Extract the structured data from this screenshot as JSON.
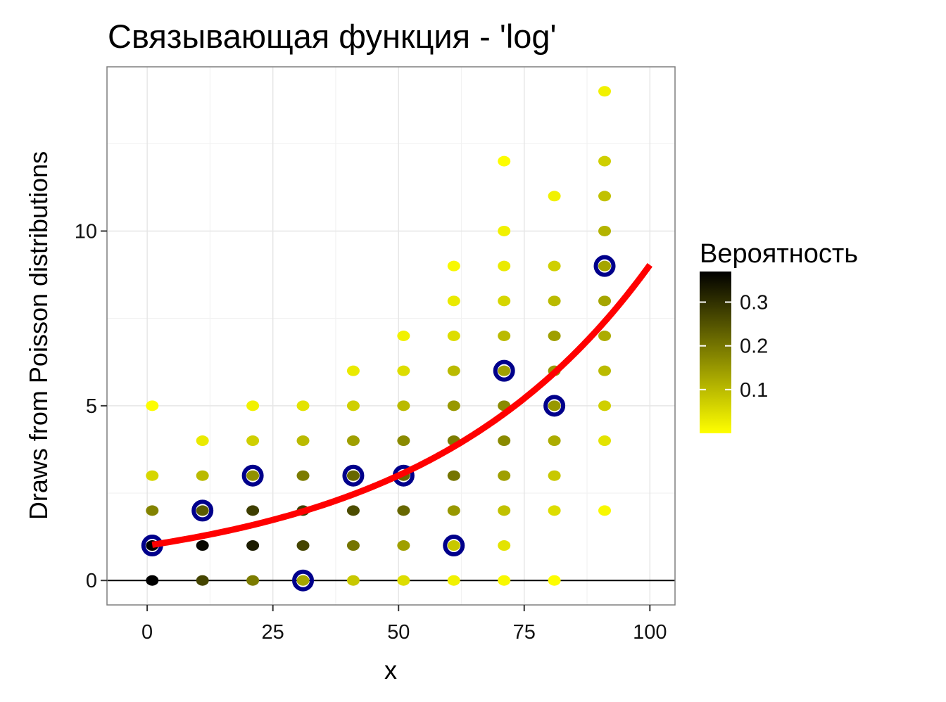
{
  "chart_data": {
    "type": "scatter",
    "title": "Связывающая функция - 'log'",
    "xlabel": "x",
    "ylabel": "Draws from Poisson distributions",
    "xlim": [
      -8,
      105
    ],
    "ylim": [
      -0.7,
      14.7
    ],
    "x_ticks": [
      0,
      25,
      50,
      75,
      100
    ],
    "y_ticks": [
      0,
      5,
      10
    ],
    "x_tick_labels": [
      "0",
      "25",
      "50",
      "75",
      "100"
    ],
    "y_tick_labels": [
      "0",
      "5",
      "10"
    ],
    "hline_y": 0,
    "grid": true,
    "legend": {
      "title": "Вероятность",
      "position": "right",
      "scale_min": 0.0,
      "scale_max": 0.37,
      "ticks": [
        0.3,
        0.2,
        0.1
      ],
      "tick_labels": [
        "0.3",
        "0.2",
        "0.1"
      ],
      "color_low": "#ffff00",
      "color_high": "#000000"
    },
    "series": [
      {
        "type": "scatter",
        "points": [
          {
            "x": 1,
            "y": 0,
            "p": 0.37
          },
          {
            "x": 1,
            "y": 1,
            "p": 0.37
          },
          {
            "x": 1,
            "y": 2,
            "p": 0.18
          },
          {
            "x": 1,
            "y": 3,
            "p": 0.06
          },
          {
            "x": 1,
            "y": 5,
            "p": 0.003
          },
          {
            "x": 11,
            "y": 0,
            "p": 0.27
          },
          {
            "x": 11,
            "y": 1,
            "p": 0.36
          },
          {
            "x": 11,
            "y": 2,
            "p": 0.24
          },
          {
            "x": 11,
            "y": 3,
            "p": 0.1
          },
          {
            "x": 11,
            "y": 4,
            "p": 0.03
          },
          {
            "x": 21,
            "y": 0,
            "p": 0.19
          },
          {
            "x": 21,
            "y": 1,
            "p": 0.33
          },
          {
            "x": 21,
            "y": 2,
            "p": 0.28
          },
          {
            "x": 21,
            "y": 3,
            "p": 0.16
          },
          {
            "x": 21,
            "y": 4,
            "p": 0.07
          },
          {
            "x": 21,
            "y": 5,
            "p": 0.02
          },
          {
            "x": 31,
            "y": 0,
            "p": 0.13
          },
          {
            "x": 31,
            "y": 1,
            "p": 0.27
          },
          {
            "x": 31,
            "y": 2,
            "p": 0.28
          },
          {
            "x": 31,
            "y": 3,
            "p": 0.19
          },
          {
            "x": 31,
            "y": 4,
            "p": 0.1
          },
          {
            "x": 31,
            "y": 5,
            "p": 0.04
          },
          {
            "x": 41,
            "y": 0,
            "p": 0.08
          },
          {
            "x": 41,
            "y": 1,
            "p": 0.2
          },
          {
            "x": 41,
            "y": 2,
            "p": 0.26
          },
          {
            "x": 41,
            "y": 3,
            "p": 0.22
          },
          {
            "x": 41,
            "y": 4,
            "p": 0.14
          },
          {
            "x": 41,
            "y": 5,
            "p": 0.07
          },
          {
            "x": 41,
            "y": 6,
            "p": 0.03
          },
          {
            "x": 51,
            "y": 0,
            "p": 0.05
          },
          {
            "x": 51,
            "y": 1,
            "p": 0.14
          },
          {
            "x": 51,
            "y": 2,
            "p": 0.22
          },
          {
            "x": 51,
            "y": 3,
            "p": 0.22
          },
          {
            "x": 51,
            "y": 4,
            "p": 0.17
          },
          {
            "x": 51,
            "y": 5,
            "p": 0.1
          },
          {
            "x": 51,
            "y": 6,
            "p": 0.05
          },
          {
            "x": 51,
            "y": 7,
            "p": 0.02
          },
          {
            "x": 61,
            "y": 0,
            "p": 0.02
          },
          {
            "x": 61,
            "y": 1,
            "p": 0.08
          },
          {
            "x": 61,
            "y": 2,
            "p": 0.15
          },
          {
            "x": 61,
            "y": 3,
            "p": 0.2
          },
          {
            "x": 61,
            "y": 4,
            "p": 0.19
          },
          {
            "x": 61,
            "y": 5,
            "p": 0.15
          },
          {
            "x": 61,
            "y": 6,
            "p": 0.1
          },
          {
            "x": 61,
            "y": 7,
            "p": 0.05
          },
          {
            "x": 61,
            "y": 8,
            "p": 0.03
          },
          {
            "x": 61,
            "y": 9,
            "p": 0.01
          },
          {
            "x": 71,
            "y": 0,
            "p": 0.01
          },
          {
            "x": 71,
            "y": 1,
            "p": 0.04
          },
          {
            "x": 71,
            "y": 2,
            "p": 0.09
          },
          {
            "x": 71,
            "y": 3,
            "p": 0.14
          },
          {
            "x": 71,
            "y": 4,
            "p": 0.17
          },
          {
            "x": 71,
            "y": 5,
            "p": 0.17
          },
          {
            "x": 71,
            "y": 6,
            "p": 0.14
          },
          {
            "x": 71,
            "y": 7,
            "p": 0.1
          },
          {
            "x": 71,
            "y": 8,
            "p": 0.06
          },
          {
            "x": 71,
            "y": 9,
            "p": 0.03
          },
          {
            "x": 71,
            "y": 10,
            "p": 0.02
          },
          {
            "x": 71,
            "y": 12,
            "p": 0.003
          },
          {
            "x": 81,
            "y": 0,
            "p": 0.003
          },
          {
            "x": 81,
            "y": 2,
            "p": 0.05
          },
          {
            "x": 81,
            "y": 3,
            "p": 0.08
          },
          {
            "x": 81,
            "y": 4,
            "p": 0.12
          },
          {
            "x": 81,
            "y": 5,
            "p": 0.15
          },
          {
            "x": 81,
            "y": 6,
            "p": 0.15
          },
          {
            "x": 81,
            "y": 7,
            "p": 0.14
          },
          {
            "x": 81,
            "y": 8,
            "p": 0.1
          },
          {
            "x": 81,
            "y": 9,
            "p": 0.07
          },
          {
            "x": 81,
            "y": 11,
            "p": 0.02
          },
          {
            "x": 91,
            "y": 2,
            "p": 0.01
          },
          {
            "x": 91,
            "y": 4,
            "p": 0.04
          },
          {
            "x": 91,
            "y": 5,
            "p": 0.07
          },
          {
            "x": 91,
            "y": 6,
            "p": 0.1
          },
          {
            "x": 91,
            "y": 7,
            "p": 0.12
          },
          {
            "x": 91,
            "y": 8,
            "p": 0.13
          },
          {
            "x": 91,
            "y": 9,
            "p": 0.13
          },
          {
            "x": 91,
            "y": 10,
            "p": 0.11
          },
          {
            "x": 91,
            "y": 11,
            "p": 0.09
          },
          {
            "x": 91,
            "y": 12,
            "p": 0.07
          },
          {
            "x": 91,
            "y": 14,
            "p": 0.02
          }
        ]
      },
      {
        "type": "scatter-highlight",
        "color": "#00008b",
        "points": [
          {
            "x": 1,
            "y": 1
          },
          {
            "x": 11,
            "y": 2
          },
          {
            "x": 21,
            "y": 3
          },
          {
            "x": 31,
            "y": 0
          },
          {
            "x": 41,
            "y": 3
          },
          {
            "x": 51,
            "y": 3
          },
          {
            "x": 61,
            "y": 1
          },
          {
            "x": 71,
            "y": 6
          },
          {
            "x": 81,
            "y": 5
          },
          {
            "x": 91,
            "y": 9
          }
        ]
      },
      {
        "type": "line",
        "color": "#ff0000",
        "function": "exp(0.022 * x)",
        "x_range": [
          1,
          100
        ],
        "x": [
          1,
          10,
          20,
          30,
          40,
          50,
          60,
          70,
          80,
          90,
          100
        ],
        "y": [
          1.02,
          1.25,
          1.55,
          1.93,
          2.41,
          3.0,
          3.74,
          4.66,
          5.81,
          7.24,
          9.03
        ]
      }
    ]
  }
}
